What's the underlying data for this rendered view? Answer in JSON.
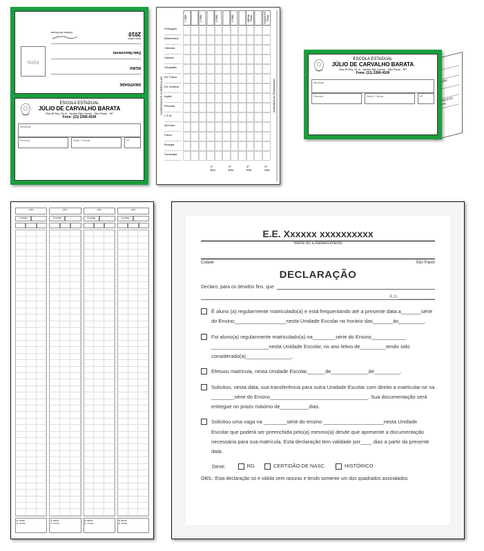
{
  "colors": {
    "green": "#1a9e3e",
    "border": "#111111",
    "text": "#333333"
  },
  "school": {
    "line1": "ESCOLA ESTADUAL",
    "name": "JÚLIO DE CARVALHO BARATA",
    "address": "Rua El Rey, 91-A - Jardim São Carlos - São Paulo - SP",
    "phone": "Fone: (11) 2266-4100"
  },
  "id_card": {
    "identity_label": "IDENTIDADE",
    "photo_label": "FOTO",
    "rgra_label": "RG/RA",
    "dob_label": "Data Nascimento",
    "year_label": "Ano Letivo",
    "year_value": "2010",
    "director_label": "Diretor de Escola",
    "aluno_label": "Aluno(a)",
    "periodo_label": "Período",
    "serie_label": "Série / Turma",
    "num_label": "Nº"
  },
  "grades": {
    "side_label": "COMPONENTE CURRICULAR",
    "signature_label": "Assinatura do Responsável",
    "subjects": [
      "Português",
      "Matemática",
      "Ciências",
      "História",
      "Geografia",
      "Ed. Física",
      "Ed. Artística",
      "Inglês",
      "Filosofia",
      "L.E.M.",
      "Química",
      "Física",
      "Biologia",
      "Sociologia"
    ],
    "columns": [
      "1º BIM.",
      "",
      "2º BIM.",
      "",
      "3º BIM.",
      "",
      "4º BIM.",
      "",
      "MÉDIA FINAL",
      "",
      "CONCEITO FINAL"
    ],
    "bimestres": [
      "1º BIM.",
      "2º BIM.",
      "3º BIM.",
      "4º BIM."
    ]
  },
  "fold": {
    "back_labels": [
      "",
      "",
      "MÉDIA",
      "",
      "CONCEITO FINAL"
    ]
  },
  "ledger": {
    "col_header": "ANO",
    "sub_headers": [
      "CLASSE",
      ""
    ],
    "foot1": "E. PROF.",
    "foot2": "E. TOTAL",
    "num_rows": 44,
    "num_cols": 4
  },
  "declaration": {
    "header_title": "E.E. Xxxxxx xxxxxxxxxx",
    "header_sub": "Nome do Estabelecimento",
    "city_left": "Cidade",
    "city_right": "São Paulo",
    "title": "DECLARAÇÃO",
    "intro": "Declaro, para os devidos fins, que",
    "rg_label": "R.G.",
    "items": [
      "É aluno (a) regularmente matriculado(a) e está frequentando até a presente data a_______série do Ensino__________________nesta Unidade Escolar no horário das_______às_________.",
      "Foi aluno(a) regularmente matriculado(a) na________série do Ensino____________ ____________________nesta Unidade Escolar, no ano letivo de_________tendo sido considerado(a)________________.",
      "Efetuou matrícula, nesta Unidade Escolar,______de_____________de_________.",
      "Solicitou, nesta data, sua transferência para outra Unidade Escolar com direito a matricular-se na ________série do Ensino__________________________________. Sua documentação será entregue no prazo máximo de__________dias.",
      "Solicitou uma vaga na ________série do ensino _____________________nesta Unidade Escolar que poderá ser preenchida pelo(a) mesmo(a) desde que apresente a documentação necessária para sua matrícula. Esta declaração tem validade por____ dias a partir da presente data."
    ],
    "docs_label": "Deve:",
    "docs": [
      "RG",
      "CERTIDÃO DE NASC.",
      "HISTÓRICO"
    ],
    "obs": "OBS.: Esta declaração só é válida sem rasuras e tendo somente um dos quadrados assinalados"
  }
}
